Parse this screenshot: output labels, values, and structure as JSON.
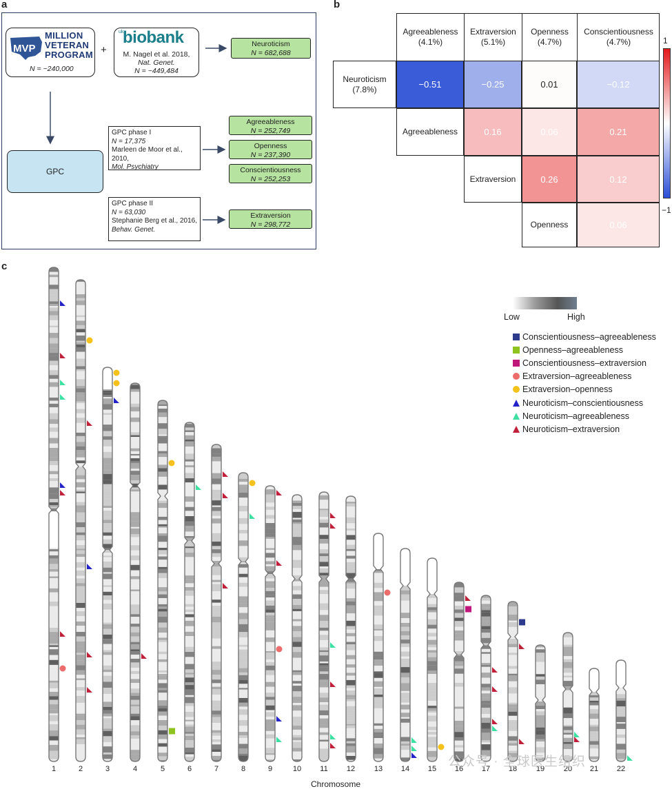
{
  "panel_a": {
    "letter": "a",
    "mvp": {
      "line1": "MILLION",
      "line2": "VETERAN",
      "line3": "PROGRAM",
      "n": "N = ~240,000"
    },
    "plus": "+",
    "ukb": {
      "logo_uk": "uk",
      "logo": "biobank",
      "cite1": "M. Nagel et al. 2018,",
      "cite2": "Nat. Genet.",
      "n": "N = ~449,484"
    },
    "gpc_label": "GPC",
    "phase1": {
      "l1": "GPC  phase I",
      "l2": "N = 17,375",
      "l3": "Marleen de Moor et al., 2010,",
      "l4": "Mol. Psychiatry"
    },
    "phase2": {
      "l1": "GPC phase II",
      "l2": "N = 63,030",
      "l3": "Stephanie Berg et al., 2016,",
      "l4": "Behav. Genet."
    },
    "traits": [
      {
        "name": "Neuroticism",
        "n": "N = 682,688"
      },
      {
        "name": "Agreeableness",
        "n": "N = 252,749"
      },
      {
        "name": "Openness",
        "n": "N = 237,390"
      },
      {
        "name": "Conscientiousness",
        "n": "N = 252,253"
      },
      {
        "name": "Extraversion",
        "n": "N = 298,772"
      }
    ]
  },
  "panel_b": {
    "letter": "b",
    "col_headers": [
      {
        "name": "Agreeableness",
        "pct": "(4.1%)"
      },
      {
        "name": "Extraversion",
        "pct": "(5.1%)"
      },
      {
        "name": "Openness",
        "pct": "(4.7%)"
      },
      {
        "name": "Conscientiousness",
        "pct": "(4.7%)"
      }
    ],
    "row_headers": [
      {
        "name": "Neuroticism",
        "pct": "(7.8%)"
      },
      {
        "name": "Agreeableness",
        "pct": ""
      },
      {
        "name": "Extraversion",
        "pct": ""
      },
      {
        "name": "Openness",
        "pct": ""
      }
    ],
    "cells": [
      {
        "row": 0,
        "col": 0,
        "label": "−0.51",
        "value": -0.51
      },
      {
        "row": 0,
        "col": 1,
        "label": "−0.25",
        "value": -0.25
      },
      {
        "row": 0,
        "col": 2,
        "label": "0.01",
        "value": 0.01
      },
      {
        "row": 0,
        "col": 3,
        "label": "−0.12",
        "value": -0.12
      },
      {
        "row": 1,
        "col": 1,
        "label": "0.16",
        "value": 0.16
      },
      {
        "row": 1,
        "col": 2,
        "label": "0.06",
        "value": 0.06
      },
      {
        "row": 1,
        "col": 3,
        "label": "0.21",
        "value": 0.21
      },
      {
        "row": 2,
        "col": 2,
        "label": "0.26",
        "value": 0.26
      },
      {
        "row": 2,
        "col": 3,
        "label": "0.12",
        "value": 0.12
      },
      {
        "row": 3,
        "col": 3,
        "label": "0.06",
        "value": 0.06
      }
    ],
    "colorbar": {
      "max_label": "1",
      "min_label": "−1",
      "high_color": "#e31a1c",
      "low_color": "#2b4fd6"
    }
  },
  "panel_c": {
    "letter": "c",
    "xlabel": "Chromosome",
    "chromosomes": [
      "1",
      "2",
      "3",
      "4",
      "5",
      "6",
      "7",
      "8",
      "9",
      "10",
      "11",
      "12",
      "13",
      "14",
      "15",
      "16",
      "17",
      "18",
      "19",
      "20",
      "21",
      "22"
    ],
    "density_low": "Low",
    "density_high": "High",
    "legend": [
      {
        "label": "Conscientiousness–agreeableness",
        "shape": "square",
        "color": "#2e3a8c"
      },
      {
        "label": "Openness–agreeableness",
        "shape": "square",
        "color": "#8fc31f"
      },
      {
        "label": "Conscientiousness–extraversion",
        "shape": "square",
        "color": "#c0187a"
      },
      {
        "label": "Extraversion–agreeableness",
        "shape": "circle",
        "color": "#ec6b6b"
      },
      {
        "label": "Extraversion–openness",
        "shape": "circle",
        "color": "#f5c21b"
      },
      {
        "label": "Neuroticism–conscientiousness",
        "shape": "triangle",
        "color": "#2323c8"
      },
      {
        "label": "Neuroticism–agreeableness",
        "shape": "triangle",
        "color": "#3de0a0"
      },
      {
        "label": "Neuroticism–extraversion",
        "shape": "triangle",
        "color": "#c0203a"
      }
    ],
    "watermark": "公众号 · 全球医生组织"
  }
}
